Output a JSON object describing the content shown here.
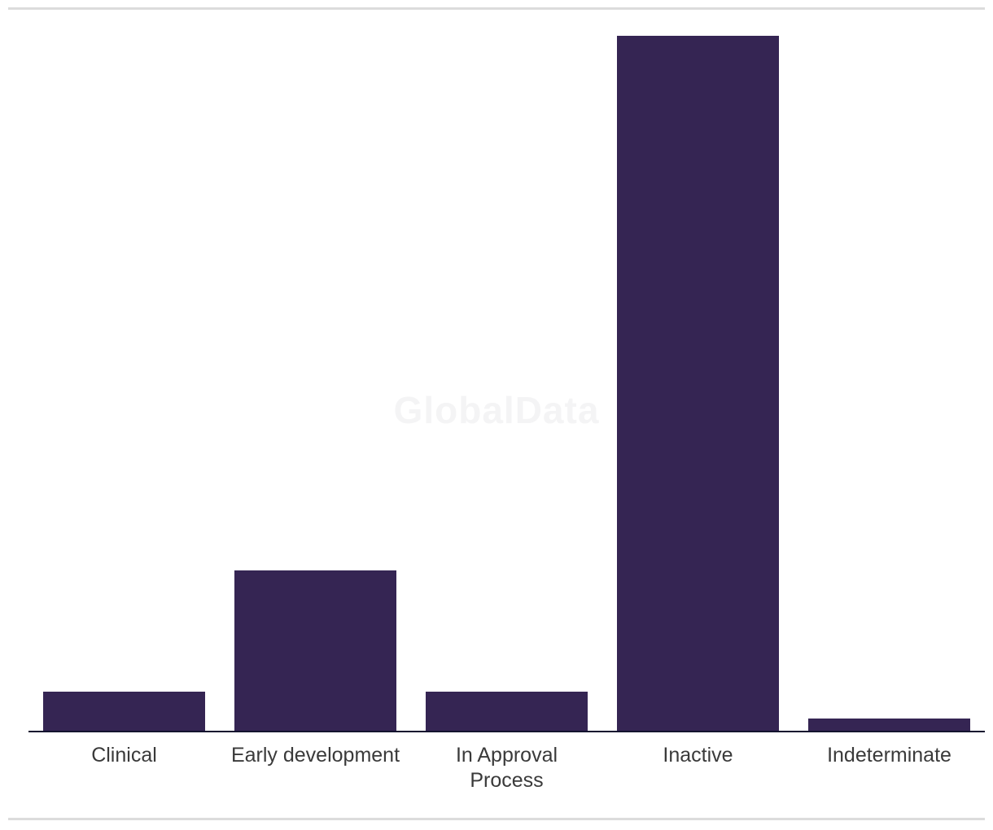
{
  "page": {
    "background": "#ffffff",
    "divider_color": "#dcdcdc"
  },
  "watermark": {
    "text": "GlobalData",
    "color": "#f4f4f5"
  },
  "chart_data": {
    "type": "bar",
    "title": "",
    "xlabel": "",
    "ylabel": "",
    "categories": [
      "Clinical",
      "Early development",
      "In Approval Process",
      "Inactive",
      "Indeterminate"
    ],
    "tick_labels": [
      "Clinical",
      "Early development",
      "In Approval\nProcess",
      "Inactive",
      "Indeterminate"
    ],
    "values": [
      48,
      197,
      48,
      856,
      15
    ],
    "ylim": [
      0,
      900
    ],
    "grid": false,
    "legend": false,
    "bar_color": "#352553",
    "axis_color": "#13132f",
    "label_color": "#3a3a3a"
  }
}
